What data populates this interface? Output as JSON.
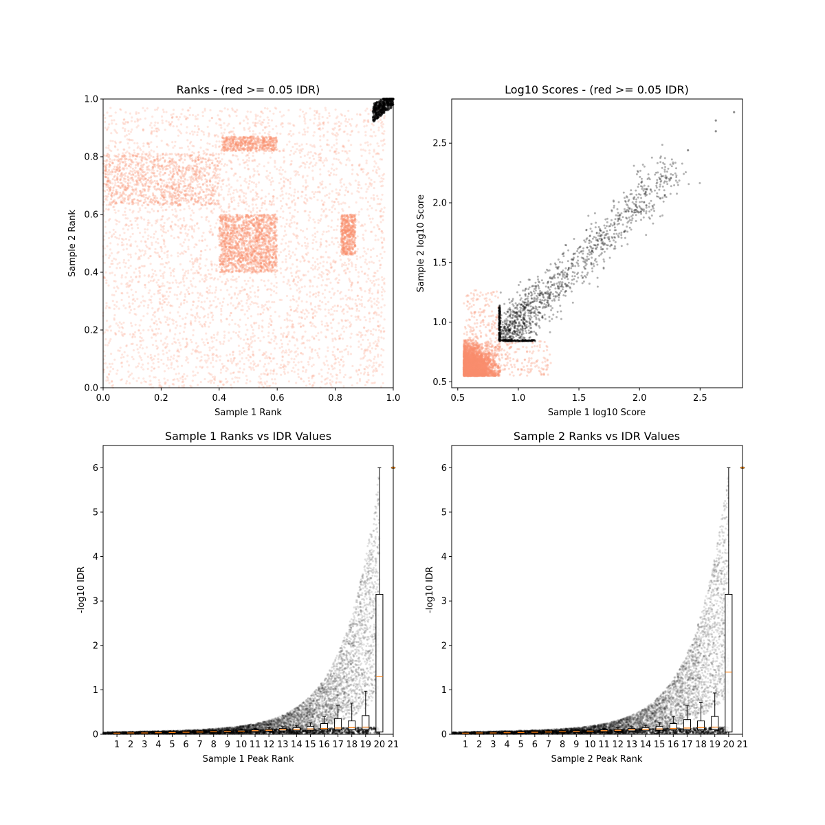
{
  "colors": {
    "fail_idr": "#fa8f6e",
    "pass_idr": "#000000",
    "median": "#ff7f0e",
    "box": "#000000"
  },
  "chart_data": [
    {
      "id": "ranks",
      "type": "scatter",
      "title": "Ranks - (red >= 0.05 IDR)",
      "xlabel": "Sample 1 Rank",
      "ylabel": "Sample 2 Rank",
      "xlim": [
        0,
        1
      ],
      "ylim": [
        0,
        1
      ],
      "xticks": [
        "0.0",
        "0.2",
        "0.4",
        "0.6",
        "0.8",
        "1.0"
      ],
      "yticks": [
        "0.0",
        "0.2",
        "0.4",
        "0.6",
        "0.8",
        "1.0"
      ],
      "grid": false,
      "regions": [
        {
          "group": "fail_idr",
          "x": [
            0.0,
            0.97
          ],
          "y": [
            0.0,
            0.97
          ],
          "density": "uniform"
        },
        {
          "group": "fail_idr_dense",
          "x": [
            0.4,
            0.6
          ],
          "y": [
            0.4,
            0.6
          ],
          "density": "high"
        },
        {
          "group": "fail_idr_dense",
          "x": [
            0.41,
            0.6
          ],
          "y": [
            0.82,
            0.87
          ],
          "density": "high"
        },
        {
          "group": "fail_idr_dense",
          "x": [
            0.82,
            0.87
          ],
          "y": [
            0.46,
            0.6
          ],
          "density": "high"
        },
        {
          "group": "pass_idr",
          "x": [
            0.93,
            1.0
          ],
          "y": [
            0.93,
            1.0
          ],
          "density": "high"
        }
      ]
    },
    {
      "id": "scores",
      "type": "scatter",
      "title": "Log10 Scores - (red >= 0.05 IDR)",
      "xlabel": "Sample 1 log10 Score",
      "ylabel": "Sample 2 log10 Score",
      "xlim": [
        0.45,
        2.85
      ],
      "ylim": [
        0.45,
        2.87
      ],
      "xticks": [
        "0.5",
        "1.0",
        "1.5",
        "2.0",
        "2.5"
      ],
      "yticks": [
        "0.5",
        "1.0",
        "1.5",
        "2.0",
        "2.5"
      ],
      "grid": false,
      "regions": [
        {
          "group": "fail_idr",
          "x": [
            0.55,
            0.85
          ],
          "y": [
            0.55,
            1.3
          ]
        },
        {
          "group": "fail_idr",
          "x": [
            0.55,
            1.3
          ],
          "y": [
            0.55,
            0.85
          ]
        },
        {
          "group": "pass_idr",
          "x": [
            0.84,
            2.8
          ],
          "y": [
            0.84,
            2.8
          ],
          "trend": "diagonal"
        }
      ],
      "highlight_points": [
        [
          2.78,
          2.76
        ],
        [
          2.63,
          2.69
        ],
        [
          2.63,
          2.6
        ],
        [
          2.4,
          2.44
        ]
      ]
    },
    {
      "id": "s1_idr",
      "type": "box",
      "title": "Sample 1 Ranks vs IDR Values",
      "xlabel": "Sample 1 Peak Rank",
      "ylabel": "-log10 IDR",
      "xlim": [
        0,
        21
      ],
      "ylim": [
        0,
        6.5
      ],
      "xticks": [
        "1",
        "2",
        "3",
        "4",
        "5",
        "6",
        "7",
        "8",
        "9",
        "10",
        "11",
        "12",
        "13",
        "14",
        "15",
        "16",
        "17",
        "18",
        "19",
        "20",
        "21"
      ],
      "yticks": [
        "0",
        "1",
        "2",
        "3",
        "4",
        "5",
        "6"
      ],
      "grid": false,
      "boxes": [
        {
          "bin": 1,
          "q1": 0.02,
          "median": 0.025,
          "q3": 0.03,
          "whisker_low": 0.015,
          "whisker_high": 0.035
        },
        {
          "bin": 2,
          "q1": 0.025,
          "median": 0.03,
          "q3": 0.035,
          "whisker_low": 0.02,
          "whisker_high": 0.04
        },
        {
          "bin": 3,
          "q1": 0.025,
          "median": 0.03,
          "q3": 0.04,
          "whisker_low": 0.02,
          "whisker_high": 0.045
        },
        {
          "bin": 4,
          "q1": 0.03,
          "median": 0.035,
          "q3": 0.045,
          "whisker_low": 0.02,
          "whisker_high": 0.05
        },
        {
          "bin": 5,
          "q1": 0.03,
          "median": 0.04,
          "q3": 0.05,
          "whisker_low": 0.025,
          "whisker_high": 0.06
        },
        {
          "bin": 6,
          "q1": 0.035,
          "median": 0.045,
          "q3": 0.055,
          "whisker_low": 0.025,
          "whisker_high": 0.07
        },
        {
          "bin": 7,
          "q1": 0.04,
          "median": 0.05,
          "q3": 0.06,
          "whisker_low": 0.03,
          "whisker_high": 0.08
        },
        {
          "bin": 8,
          "q1": 0.045,
          "median": 0.055,
          "q3": 0.07,
          "whisker_low": 0.03,
          "whisker_high": 0.09
        },
        {
          "bin": 9,
          "q1": 0.05,
          "median": 0.06,
          "q3": 0.08,
          "whisker_low": 0.035,
          "whisker_high": 0.1
        },
        {
          "bin": 10,
          "q1": 0.055,
          "median": 0.07,
          "q3": 0.09,
          "whisker_low": 0.04,
          "whisker_high": 0.12
        },
        {
          "bin": 11,
          "q1": 0.06,
          "median": 0.08,
          "q3": 0.1,
          "whisker_low": 0.04,
          "whisker_high": 0.13
        },
        {
          "bin": 12,
          "q1": 0.07,
          "median": 0.09,
          "q3": 0.11,
          "whisker_low": 0.045,
          "whisker_high": 0.15
        },
        {
          "bin": 13,
          "q1": 0.075,
          "median": 0.1,
          "q3": 0.13,
          "whisker_low": 0.05,
          "whisker_high": 0.17
        },
        {
          "bin": 14,
          "q1": 0.08,
          "median": 0.11,
          "q3": 0.15,
          "whisker_low": 0.05,
          "whisker_high": 0.2
        },
        {
          "bin": 15,
          "q1": 0.09,
          "median": 0.12,
          "q3": 0.18,
          "whisker_low": 0.05,
          "whisker_high": 0.26
        },
        {
          "bin": 16,
          "q1": 0.1,
          "median": 0.13,
          "q3": 0.24,
          "whisker_low": 0.06,
          "whisker_high": 0.4
        },
        {
          "bin": 17,
          "q1": 0.1,
          "median": 0.14,
          "q3": 0.35,
          "whisker_low": 0.06,
          "whisker_high": 0.65
        },
        {
          "bin": 18,
          "q1": 0.1,
          "median": 0.15,
          "q3": 0.3,
          "whisker_low": 0.06,
          "whisker_high": 0.7
        },
        {
          "bin": 19,
          "q1": 0.1,
          "median": 0.16,
          "q3": 0.42,
          "whisker_low": 0.06,
          "whisker_high": 0.97
        },
        {
          "bin": 20,
          "q1": 0.05,
          "median": 1.3,
          "q3": 3.15,
          "whisker_low": 0.0,
          "whisker_high": 6.0
        }
      ],
      "outlier_marker": {
        "x": 21,
        "y": 6.0
      }
    },
    {
      "id": "s2_idr",
      "type": "box",
      "title": "Sample 2 Ranks vs IDR Values",
      "xlabel": "Sample 2 Peak Rank",
      "ylabel": "-log10 IDR",
      "xlim": [
        0,
        21
      ],
      "ylim": [
        0,
        6.5
      ],
      "xticks": [
        "1",
        "2",
        "3",
        "4",
        "5",
        "6",
        "7",
        "8",
        "9",
        "10",
        "11",
        "12",
        "13",
        "14",
        "15",
        "16",
        "17",
        "18",
        "19",
        "20",
        "21"
      ],
      "yticks": [
        "0",
        "1",
        "2",
        "3",
        "4",
        "5",
        "6"
      ],
      "grid": false,
      "boxes": [
        {
          "bin": 1,
          "q1": 0.02,
          "median": 0.025,
          "q3": 0.03,
          "whisker_low": 0.015,
          "whisker_high": 0.035
        },
        {
          "bin": 2,
          "q1": 0.025,
          "median": 0.03,
          "q3": 0.035,
          "whisker_low": 0.02,
          "whisker_high": 0.04
        },
        {
          "bin": 3,
          "q1": 0.025,
          "median": 0.03,
          "q3": 0.04,
          "whisker_low": 0.02,
          "whisker_high": 0.045
        },
        {
          "bin": 4,
          "q1": 0.03,
          "median": 0.035,
          "q3": 0.045,
          "whisker_low": 0.02,
          "whisker_high": 0.05
        },
        {
          "bin": 5,
          "q1": 0.03,
          "median": 0.04,
          "q3": 0.05,
          "whisker_low": 0.025,
          "whisker_high": 0.06
        },
        {
          "bin": 6,
          "q1": 0.035,
          "median": 0.045,
          "q3": 0.055,
          "whisker_low": 0.025,
          "whisker_high": 0.07
        },
        {
          "bin": 7,
          "q1": 0.04,
          "median": 0.05,
          "q3": 0.06,
          "whisker_low": 0.03,
          "whisker_high": 0.08
        },
        {
          "bin": 8,
          "q1": 0.045,
          "median": 0.055,
          "q3": 0.07,
          "whisker_low": 0.03,
          "whisker_high": 0.09
        },
        {
          "bin": 9,
          "q1": 0.05,
          "median": 0.06,
          "q3": 0.08,
          "whisker_low": 0.035,
          "whisker_high": 0.1
        },
        {
          "bin": 10,
          "q1": 0.055,
          "median": 0.07,
          "q3": 0.09,
          "whisker_low": 0.04,
          "whisker_high": 0.12
        },
        {
          "bin": 11,
          "q1": 0.06,
          "median": 0.08,
          "q3": 0.1,
          "whisker_low": 0.04,
          "whisker_high": 0.13
        },
        {
          "bin": 12,
          "q1": 0.07,
          "median": 0.09,
          "q3": 0.11,
          "whisker_low": 0.045,
          "whisker_high": 0.15
        },
        {
          "bin": 13,
          "q1": 0.075,
          "median": 0.1,
          "q3": 0.13,
          "whisker_low": 0.05,
          "whisker_high": 0.17
        },
        {
          "bin": 14,
          "q1": 0.08,
          "median": 0.11,
          "q3": 0.15,
          "whisker_low": 0.05,
          "whisker_high": 0.2
        },
        {
          "bin": 15,
          "q1": 0.09,
          "median": 0.12,
          "q3": 0.18,
          "whisker_low": 0.05,
          "whisker_high": 0.26
        },
        {
          "bin": 16,
          "q1": 0.1,
          "median": 0.13,
          "q3": 0.24,
          "whisker_low": 0.06,
          "whisker_high": 0.4
        },
        {
          "bin": 17,
          "q1": 0.1,
          "median": 0.14,
          "q3": 0.33,
          "whisker_low": 0.06,
          "whisker_high": 0.65
        },
        {
          "bin": 18,
          "q1": 0.1,
          "median": 0.15,
          "q3": 0.3,
          "whisker_low": 0.06,
          "whisker_high": 0.72
        },
        {
          "bin": 19,
          "q1": 0.1,
          "median": 0.16,
          "q3": 0.4,
          "whisker_low": 0.06,
          "whisker_high": 0.93
        },
        {
          "bin": 20,
          "q1": 0.05,
          "median": 1.4,
          "q3": 3.15,
          "whisker_low": 0.0,
          "whisker_high": 6.0
        }
      ],
      "outlier_marker": {
        "x": 21,
        "y": 6.0
      }
    }
  ]
}
